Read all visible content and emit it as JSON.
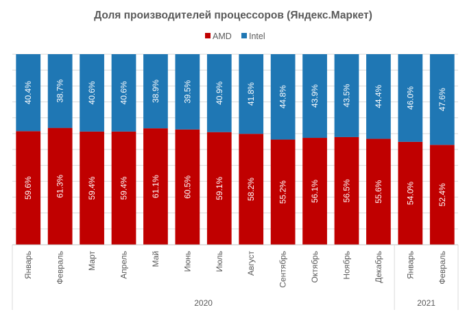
{
  "chart_data": {
    "type": "bar",
    "stacked": true,
    "percent": true,
    "title": "Доля производителей процессоров (Яндекс.Маркет)",
    "categories": [
      "Январь",
      "Февраль",
      "Март",
      "Апрель",
      "Май",
      "Июнь",
      "Июль",
      "Август",
      "Сентябрь",
      "Октябрь",
      "Ноябрь",
      "Декабрь",
      "Январь",
      "Февраль"
    ],
    "groups": [
      {
        "label": "2020",
        "count": 12
      },
      {
        "label": "2021",
        "count": 2
      }
    ],
    "series": [
      {
        "name": "AMD",
        "color": "#c00000",
        "values": [
          59.6,
          61.3,
          59.4,
          59.4,
          61.1,
          60.5,
          59.1,
          58.2,
          55.2,
          56.1,
          56.5,
          55.6,
          54.0,
          52.4
        ],
        "labels": [
          "59.6%",
          "61.3%",
          "59.4%",
          "59.4%",
          "61.1%",
          "60.5%",
          "59.1%",
          "58.2%",
          "55.2%",
          "56.1%",
          "56.5%",
          "55.6%",
          "54.0%",
          "52.4%"
        ]
      },
      {
        "name": "Intel",
        "color": "#1f77b4",
        "values": [
          40.4,
          38.7,
          40.6,
          40.6,
          38.9,
          39.5,
          40.9,
          41.8,
          44.8,
          43.9,
          43.5,
          44.4,
          46.0,
          47.6
        ],
        "labels": [
          "40.4%",
          "38.7%",
          "40.6%",
          "40.6%",
          "38.9%",
          "39.5%",
          "40.9%",
          "41.8%",
          "44.8%",
          "43.9%",
          "43.5%",
          "44.4%",
          "46.0%",
          "47.6%"
        ]
      }
    ],
    "ylim": [
      0,
      100
    ],
    "grid": true,
    "legend_position": "top-center"
  }
}
